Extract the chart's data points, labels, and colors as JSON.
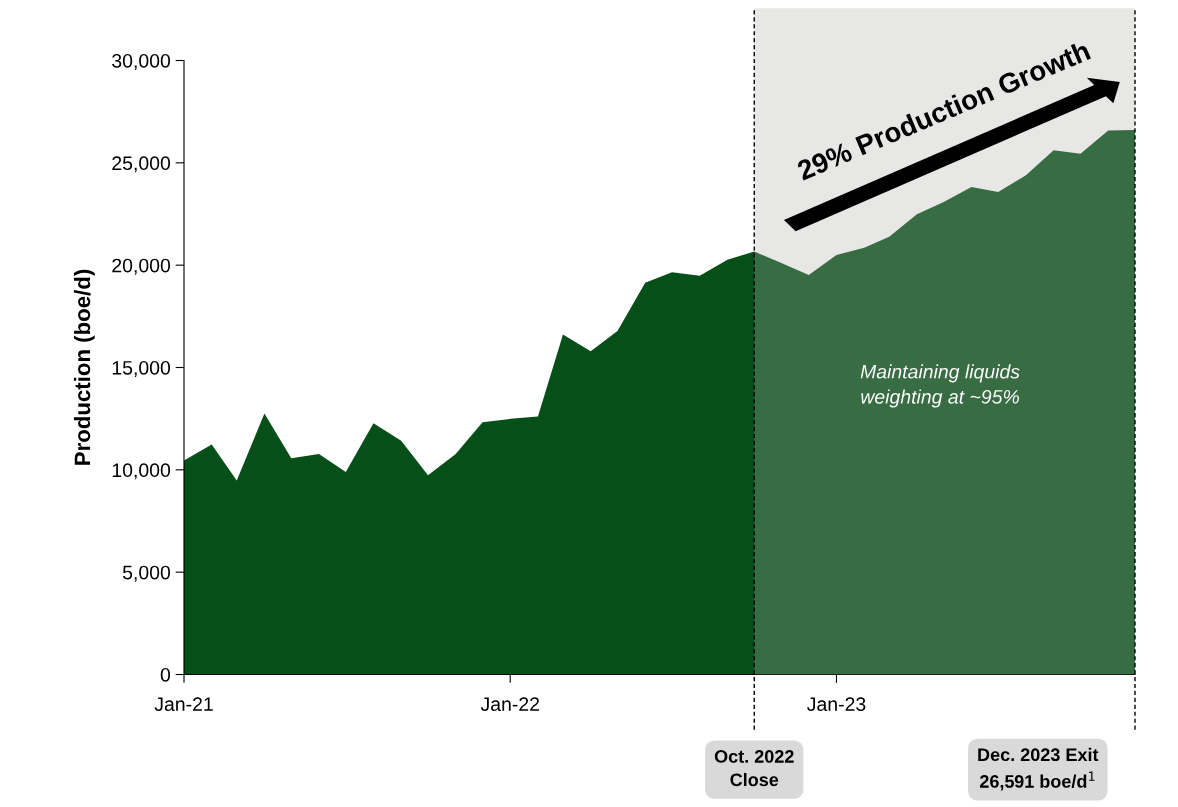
{
  "chart_data": {
    "type": "area",
    "ylabel": "Production (boe/d)",
    "x": [
      "2021-01",
      "2021-02",
      "2021-03",
      "2021-04",
      "2021-05",
      "2021-06",
      "2021-07",
      "2021-08",
      "2021-09",
      "2021-10",
      "2021-11",
      "2021-12",
      "2022-01",
      "2022-02",
      "2022-03",
      "2022-04",
      "2022-05",
      "2022-06",
      "2022-07",
      "2022-08",
      "2022-09",
      "2022-10",
      "2022-11",
      "2022-12",
      "2023-01",
      "2023-02",
      "2023-03",
      "2023-04",
      "2023-05",
      "2023-06",
      "2023-07",
      "2023-08",
      "2023-09",
      "2023-10",
      "2023-11",
      "2023-12"
    ],
    "series": [
      {
        "color": "#054f18",
        "values": [
          10450,
          11240,
          9480,
          12750,
          10560,
          10770,
          9890,
          12280,
          11420,
          9740,
          10770,
          12320,
          12490,
          12600,
          16610,
          15790,
          16780,
          19140,
          19660,
          19480,
          20260,
          20670,
          20090,
          19520,
          20500,
          20850,
          21390,
          22490,
          23090,
          23820,
          23580,
          24390,
          25610,
          25440,
          26580,
          26600
        ]
      }
    ],
    "xlim": [
      "2021-01",
      "2023-12"
    ],
    "xticks": [
      {
        "value": "2021-01",
        "label": "Jan-21"
      },
      {
        "value": "2022-01",
        "label": "Jan-22"
      },
      {
        "value": "2023-01",
        "label": "Jan-23"
      }
    ],
    "ylim": [
      0,
      30000
    ],
    "yticks": [
      {
        "value": 0,
        "label": "0"
      },
      {
        "value": 5000,
        "label": "5,000"
      },
      {
        "value": 10000,
        "label": "10,000"
      },
      {
        "value": 15000,
        "label": "15,000"
      },
      {
        "value": 20000,
        "label": "20,000"
      },
      {
        "value": 25000,
        "label": "25,000"
      },
      {
        "value": 30000,
        "label": "30,000"
      }
    ],
    "bands": [
      {
        "axis": "x",
        "from": "2022-10",
        "to": "2023-12",
        "color": "#b0b0aa"
      }
    ],
    "ref_lines": [
      {
        "axis": "x",
        "value": "2022-10",
        "label": "Oct. 2022\nClose",
        "line_style": "dashed"
      },
      {
        "axis": "x",
        "value": "2023-12",
        "label": "Dec. 2023 Exit\n26,591 boe/d$^{1}$",
        "line_style": "dashed"
      }
    ],
    "annotations": [
      "29% Production Growth",
      "Maintaining liquids\nweighting at ~95%"
    ],
    "grid": false
  }
}
